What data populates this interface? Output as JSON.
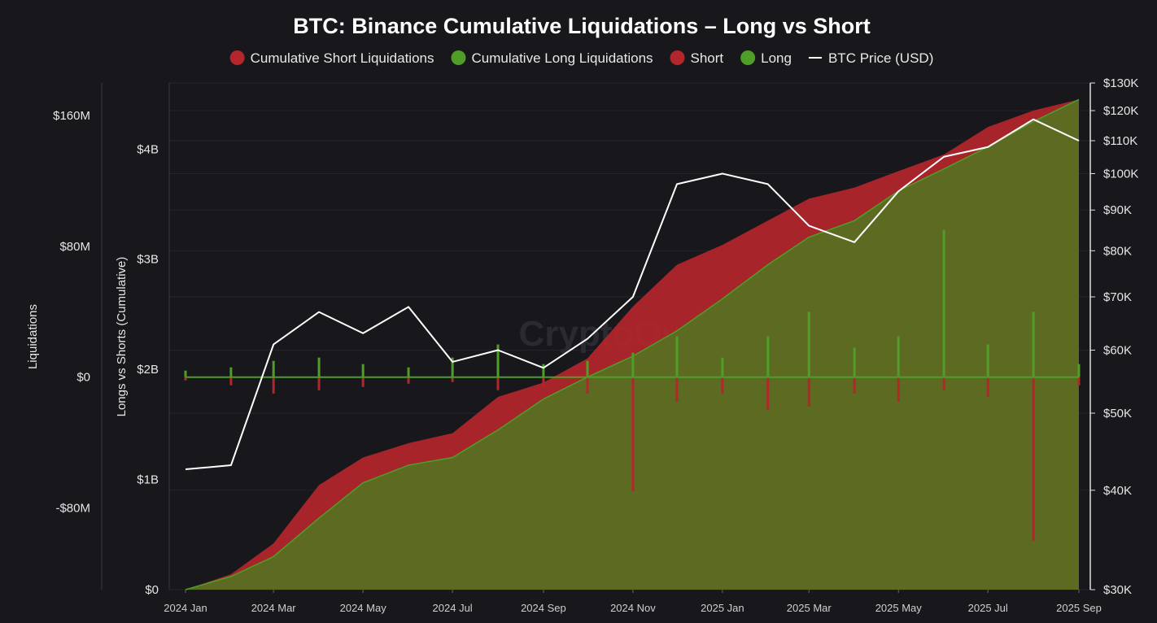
{
  "colors": {
    "background": "#17171c",
    "short": "#b3262b",
    "long": "#4f9e27",
    "long_fill": "#5d6b22",
    "price": "#ffffff"
  },
  "chart_data": {
    "type": "area",
    "title": "BTC: Binance Cumulative Liquidations – Long vs Short",
    "watermark": "CryptoQuant",
    "legend": [
      {
        "label": "Cumulative Short Liquidations",
        "color": "#b3262b",
        "shape": "dot"
      },
      {
        "label": "Cumulative Long Liquidations",
        "color": "#4f9e27",
        "shape": "dot"
      },
      {
        "label": "Short",
        "color": "#b3262b",
        "shape": "dot"
      },
      {
        "label": "Long",
        "color": "#4f9e27",
        "shape": "dot"
      },
      {
        "label": "BTC Price (USD)",
        "color": "#ffffff",
        "shape": "line"
      }
    ],
    "legend_position": "top-center",
    "axes": {
      "liquidations": {
        "label": "Liquidations",
        "ticks": [
          "$160M",
          "$80M",
          "$0",
          "-$80M"
        ],
        "values": [
          160,
          80,
          0,
          -80
        ],
        "unit": "USD millions",
        "range": [
          -130,
          180
        ]
      },
      "cumulative": {
        "label": "Longs vs Shorts (Cumulative)",
        "ticks": [
          "$4B",
          "$3B",
          "$2B",
          "$1B",
          "$0"
        ],
        "values": [
          4,
          3,
          2,
          1,
          0
        ],
        "unit": "USD billions",
        "range": [
          0,
          4.6
        ]
      },
      "price": {
        "label": "",
        "ticks": [
          "$130K",
          "$120K",
          "$110K",
          "$100K",
          "$90K",
          "$80K",
          "$70K",
          "$60K",
          "$50K",
          "$40K",
          "$30K"
        ],
        "values": [
          130,
          120,
          110,
          100,
          90,
          80,
          70,
          60,
          50,
          40,
          30
        ],
        "scale": "log",
        "unit": "USD thousands",
        "range": [
          30,
          130
        ]
      },
      "x": {
        "ticks": [
          "2024 Jan",
          "2024 Mar",
          "2024 May",
          "2024 Jul",
          "2024 Sep",
          "2024 Nov",
          "2025 Jan",
          "2025 Mar",
          "2025 May",
          "2025 Jul",
          "2025 Sep"
        ],
        "range": [
          "2024-01-01",
          "2025-09-01"
        ]
      }
    },
    "x": [
      "2024-01-01",
      "2024-02-01",
      "2024-03-01",
      "2024-04-01",
      "2024-05-01",
      "2024-06-01",
      "2024-07-01",
      "2024-08-01",
      "2024-09-01",
      "2024-10-01",
      "2024-11-01",
      "2024-12-01",
      "2025-01-01",
      "2025-02-01",
      "2025-03-01",
      "2025-04-01",
      "2025-05-01",
      "2025-06-01",
      "2025-07-01",
      "2025-08-01",
      "2025-09-01"
    ],
    "series": [
      {
        "name": "Cumulative Short Liquidations",
        "axis": "cumulative",
        "values": [
          0.0,
          0.14,
          0.42,
          0.95,
          1.2,
          1.33,
          1.42,
          1.75,
          1.88,
          2.1,
          2.57,
          2.95,
          3.13,
          3.35,
          3.55,
          3.65,
          3.8,
          3.95,
          4.2,
          4.35,
          4.45
        ]
      },
      {
        "name": "Cumulative Long Liquidations",
        "axis": "cumulative",
        "values": [
          0.0,
          0.12,
          0.3,
          0.65,
          0.97,
          1.13,
          1.2,
          1.45,
          1.73,
          1.93,
          2.12,
          2.35,
          2.64,
          2.95,
          3.2,
          3.35,
          3.62,
          3.82,
          4.02,
          4.25,
          4.45
        ]
      },
      {
        "name": "BTC Price (USD)",
        "axis": "price",
        "values": [
          42.5,
          43,
          61,
          67,
          63,
          68,
          58,
          60,
          57,
          62,
          70,
          97,
          100,
          97,
          86,
          82,
          95,
          105,
          108,
          117,
          110
        ]
      },
      {
        "name": "Short",
        "axis": "liquidations",
        "values": [
          -2,
          -5,
          -10,
          -8,
          -6,
          -4,
          -3,
          -8,
          -5,
          -10,
          -70,
          -15,
          -10,
          -20,
          -18,
          -10,
          -15,
          -8,
          -12,
          -100,
          -5
        ]
      },
      {
        "name": "Long",
        "axis": "liquidations",
        "values": [
          4,
          6,
          10,
          12,
          8,
          6,
          12,
          20,
          8,
          10,
          15,
          25,
          12,
          25,
          40,
          18,
          25,
          90,
          20,
          40,
          8
        ]
      }
    ]
  }
}
